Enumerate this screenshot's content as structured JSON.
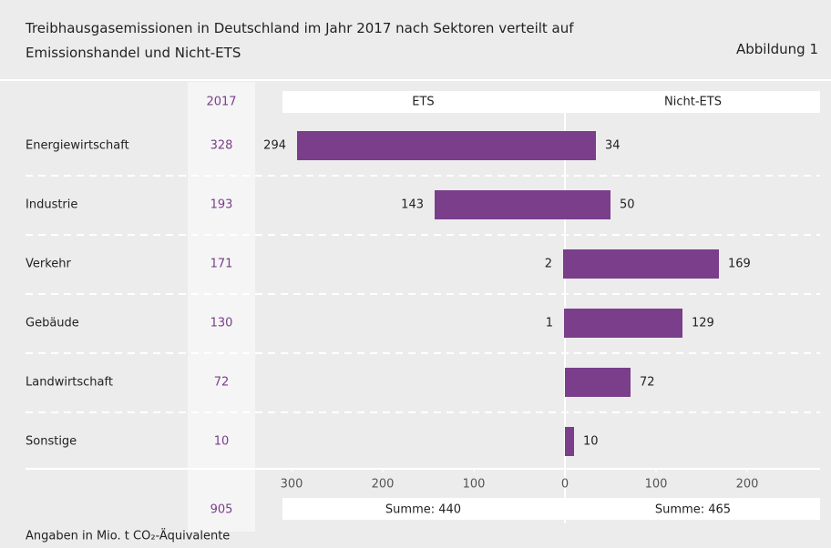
{
  "chart_data": {
    "type": "diverging_bar",
    "title": "Treibhausgasemissionen in Deutschland im Jahr 2017 nach Sektoren verteilt auf Emissionshandel und Nicht-ETS",
    "figure_label": "Abbildung 1",
    "note": "Angaben in Mio. t CO₂-Äquivalente",
    "categories": [
      "Energiewirtschaft",
      "Industrie",
      "Verkehr",
      "Gebäude",
      "Landwirtschaft",
      "Sonstige"
    ],
    "total_header": "2017",
    "totals": [
      328,
      193,
      171,
      130,
      72,
      10
    ],
    "grand_total": 905,
    "series": [
      {
        "name": "ETS",
        "color": "#7a3e8b",
        "values": [
          294,
          143,
          2,
          1,
          null,
          null
        ],
        "total_label": "Summe: 440"
      },
      {
        "name": "Nicht-ETS",
        "color": "#7a3e8b",
        "values": [
          34,
          50,
          169,
          129,
          72,
          10
        ],
        "total_label": "Summe: 465"
      }
    ],
    "xlim": [
      -310,
      280
    ],
    "xticks": [
      {
        "value": -300,
        "label": "300"
      },
      {
        "value": -200,
        "label": "200"
      },
      {
        "value": -100,
        "label": "100"
      },
      0,
      100,
      200
    ]
  }
}
